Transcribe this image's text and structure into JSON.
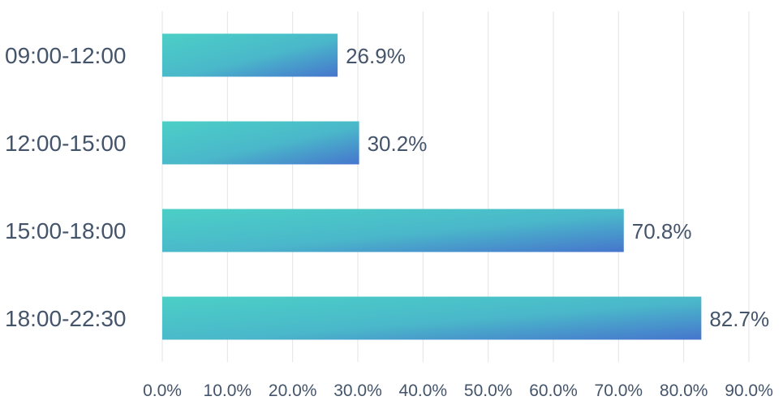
{
  "chart_data": {
    "type": "bar",
    "orientation": "horizontal",
    "categories": [
      "09:00-12:00",
      "12:00-15:00",
      "15:00-18:00",
      "18:00-22:30"
    ],
    "values": [
      26.9,
      30.2,
      70.8,
      82.7
    ],
    "value_labels": [
      "26.9%",
      "30.2%",
      "70.8%",
      "82.7%"
    ],
    "xlim": [
      0,
      90
    ],
    "x_ticks": [
      0,
      10,
      20,
      30,
      40,
      50,
      60,
      70,
      80,
      90
    ],
    "x_tick_labels": [
      "0.0%",
      "10.0%",
      "20.0%",
      "30.0%",
      "40.0%",
      "50.0%",
      "60.0%",
      "70.0%",
      "80.0%",
      "90.0%"
    ],
    "grid": true,
    "bar_gradient": [
      "#4BCFC6",
      "#4675CD"
    ],
    "text_color": "#44546A"
  }
}
